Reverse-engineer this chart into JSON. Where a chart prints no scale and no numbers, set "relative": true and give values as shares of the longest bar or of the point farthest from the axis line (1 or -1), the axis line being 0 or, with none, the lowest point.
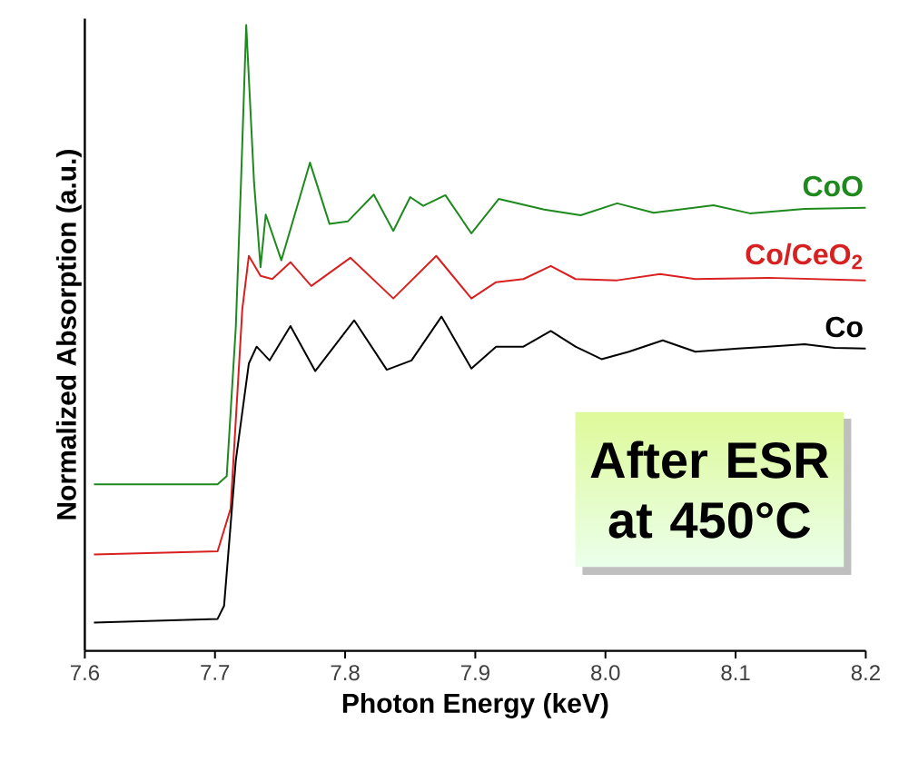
{
  "chart_data": {
    "type": "line",
    "relative": true,
    "xlabel": "Photon Energy (keV)",
    "ylabel": "Normalized Absorption (a.u.)",
    "xlim": [
      7.6,
      8.2
    ],
    "xticks": [
      7.6,
      7.7,
      7.8,
      7.9,
      {
        "value": 8.0,
        "label": "8.0"
      },
      8.1,
      8.2
    ],
    "annotations": [
      "After ESR at 450°C"
    ],
    "series": [
      {
        "name": "CoO",
        "color": "#1e8a1e",
        "x": [
          7.607,
          7.702,
          7.709,
          7.716,
          7.72,
          7.724,
          7.73,
          7.735,
          7.739,
          7.751,
          7.773,
          7.788,
          7.802,
          7.822,
          7.837,
          7.85,
          7.86,
          7.877,
          7.897,
          7.918,
          7.953,
          7.981,
          8.009,
          8.037,
          8.083,
          8.111,
          8.153,
          8.2
        ],
        "values": [
          0.266,
          0.266,
          0.279,
          0.517,
          0.749,
          1,
          0.749,
          0.613,
          0.697,
          0.624,
          0.78,
          0.682,
          0.686,
          0.729,
          0.671,
          0.725,
          0.711,
          0.728,
          0.667,
          0.722,
          0.705,
          0.696,
          0.715,
          0.7,
          0.712,
          0.699,
          0.706,
          0.708
        ]
      },
      {
        "name": "Co/CeO$_{2}$",
        "color": "#d82020",
        "x": [
          7.607,
          7.702,
          7.712,
          7.721,
          7.726,
          7.735,
          7.744,
          7.758,
          7.774,
          7.804,
          7.837,
          7.87,
          7.897,
          7.916,
          7.937,
          7.958,
          7.977,
          8.009,
          8.042,
          8.069,
          8.125,
          8.2
        ],
        "values": [
          0.154,
          0.159,
          0.227,
          0.546,
          0.631,
          0.599,
          0.594,
          0.621,
          0.583,
          0.628,
          0.563,
          0.631,
          0.563,
          0.589,
          0.594,
          0.615,
          0.594,
          0.592,
          0.602,
          0.594,
          0.596,
          0.592
        ]
      },
      {
        "name": "Co",
        "color": "#000000",
        "x": [
          7.607,
          7.702,
          7.707,
          7.716,
          7.726,
          7.732,
          7.742,
          7.758,
          7.777,
          7.807,
          7.832,
          7.851,
          7.874,
          7.897,
          7.916,
          7.937,
          7.958,
          7.977,
          7.997,
          8.018,
          8.044,
          8.069,
          8.102,
          8.125,
          8.153,
          8.176,
          8.2
        ],
        "values": [
          0.045,
          0.051,
          0.072,
          0.304,
          0.459,
          0.486,
          0.464,
          0.519,
          0.447,
          0.528,
          0.449,
          0.464,
          0.534,
          0.451,
          0.486,
          0.486,
          0.511,
          0.486,
          0.466,
          0.478,
          0.496,
          0.478,
          0.483,
          0.486,
          0.49,
          0.484,
          0.483
        ]
      }
    ]
  }
}
